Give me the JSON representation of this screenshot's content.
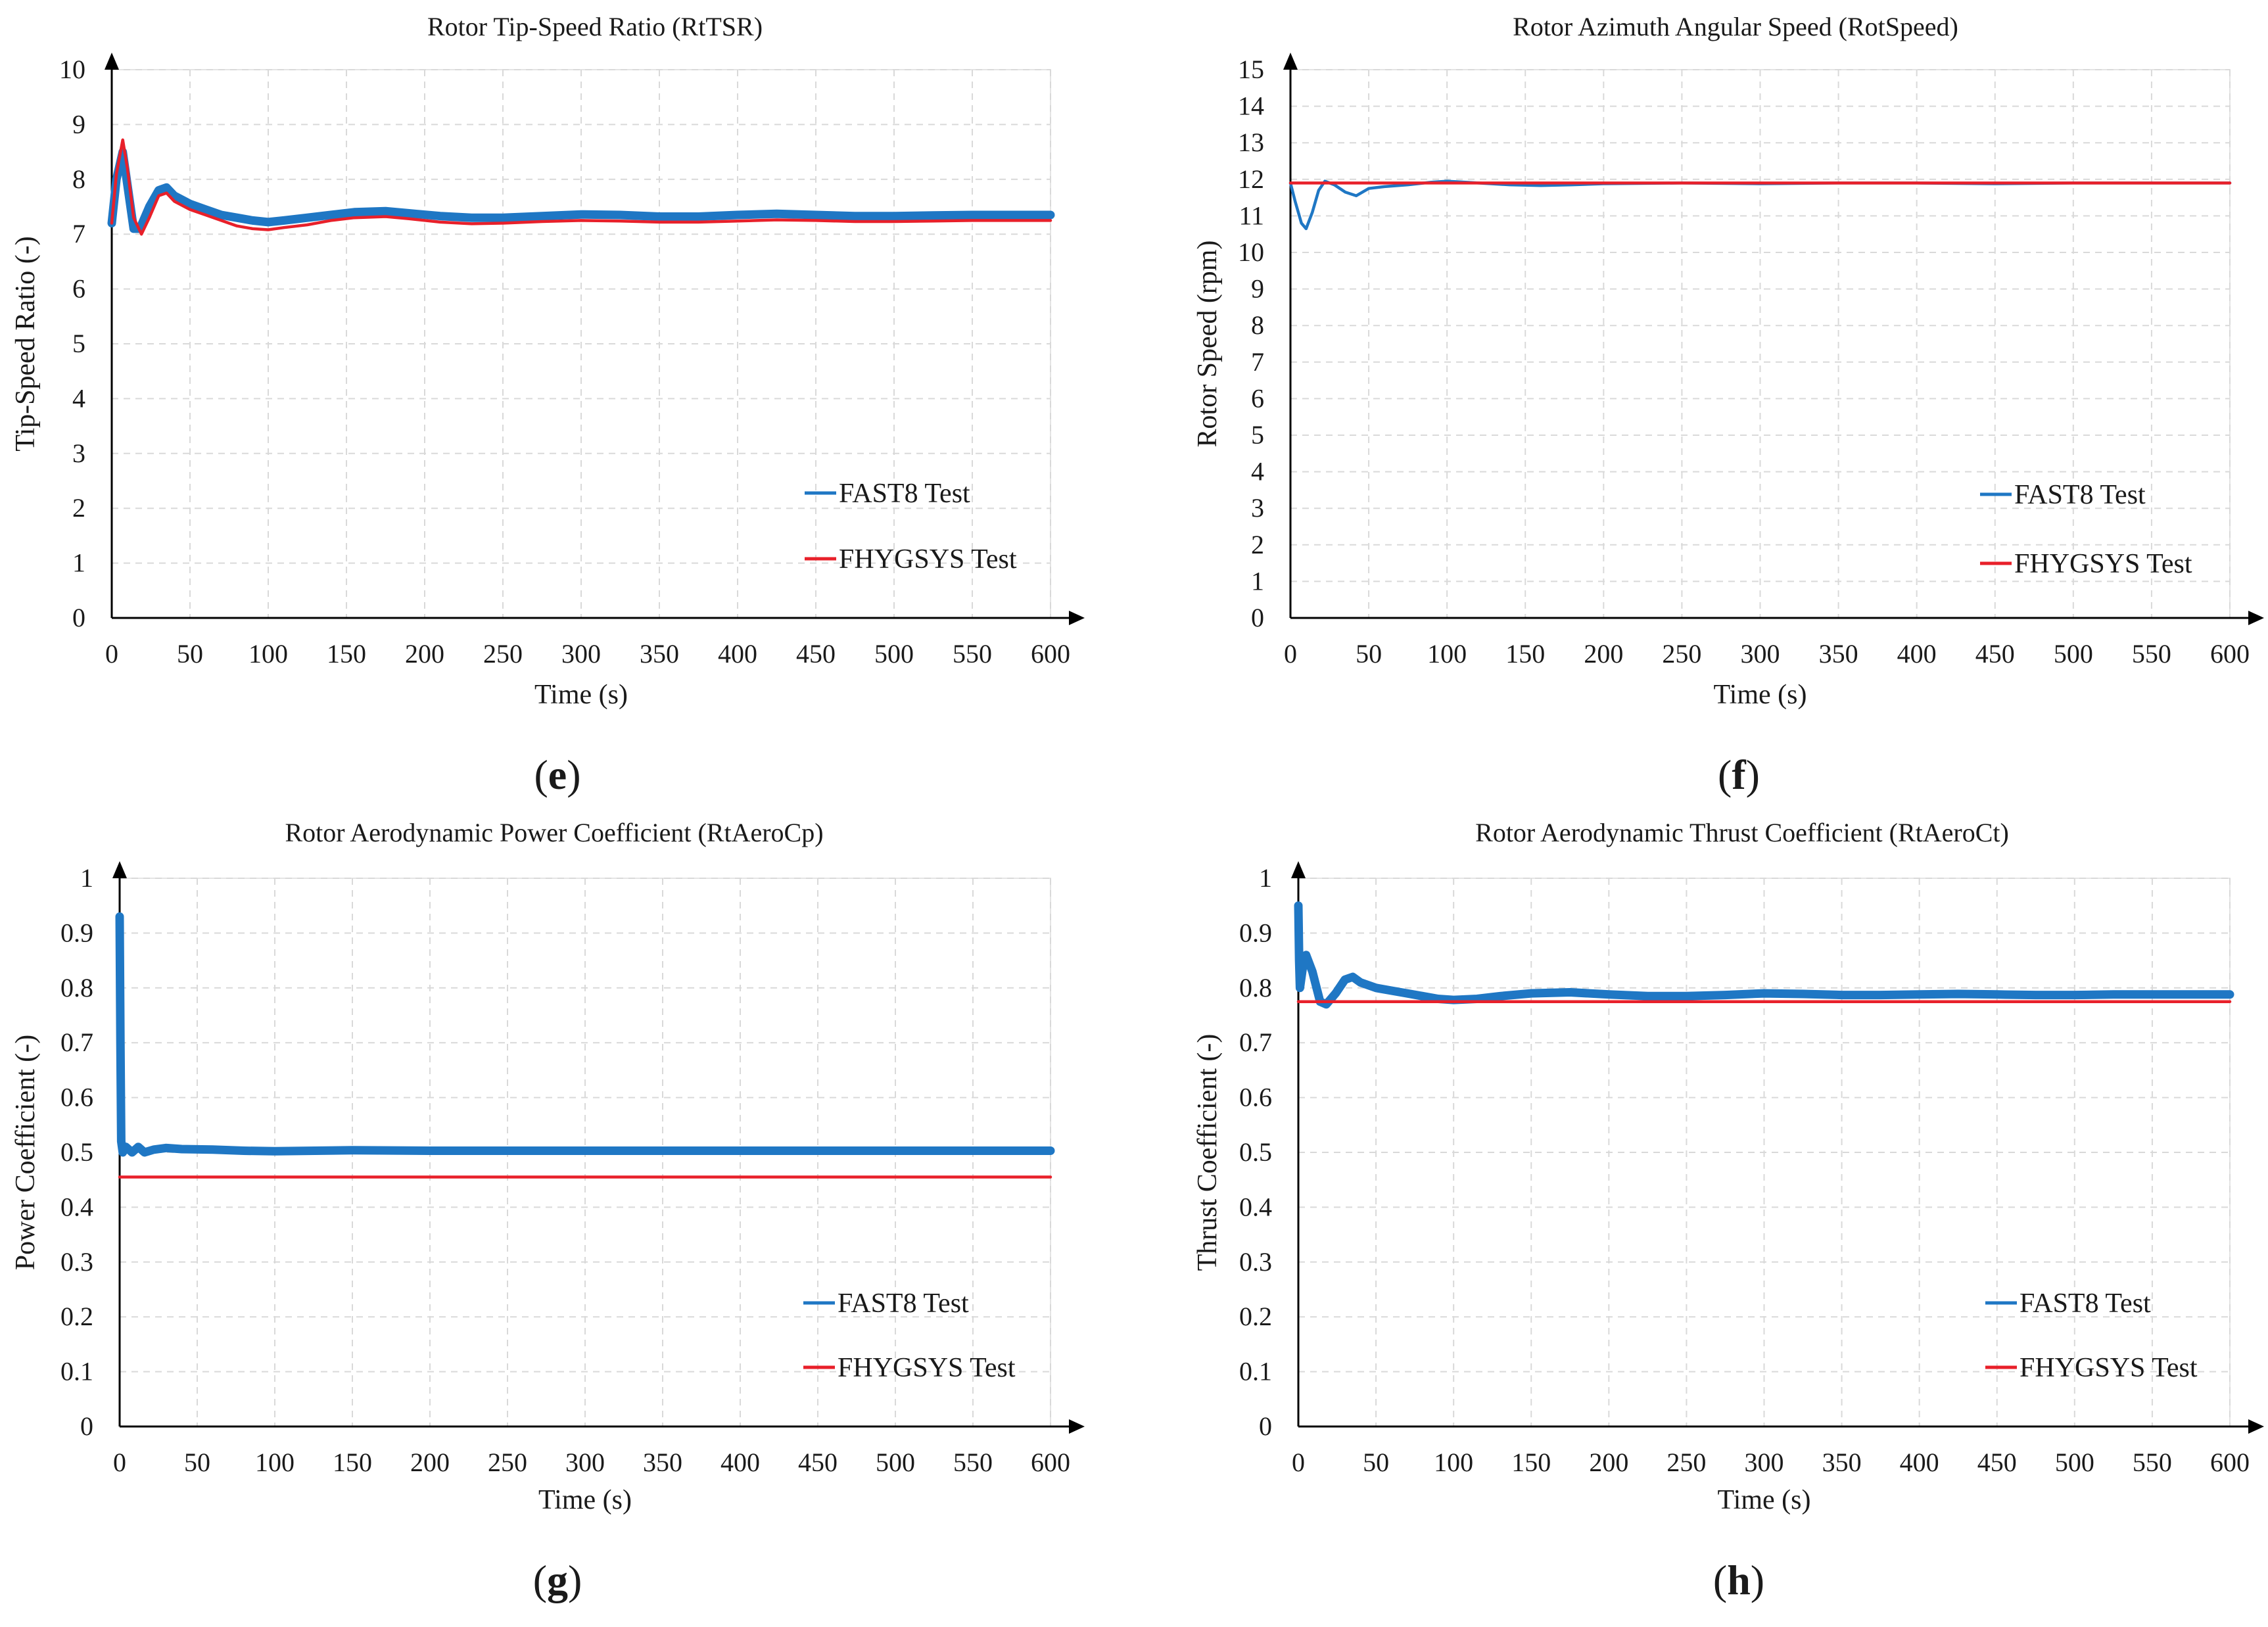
{
  "figure": {
    "background": "#ffffff"
  },
  "colors": {
    "fast8": "#1f77c4",
    "fhygsys": "#e8202a"
  },
  "chart_data": [
    {
      "type": "line",
      "panel": "e",
      "title": "Rotor Tip-Speed Ratio (RtTSR)",
      "xlabel": "Time (s)",
      "ylabel": "Tip-Speed Ratio (-)",
      "xlim": [
        0,
        600
      ],
      "ylim": [
        0,
        10
      ],
      "xticks": [
        0,
        50,
        100,
        150,
        200,
        250,
        300,
        350,
        400,
        450,
        500,
        550,
        600
      ],
      "yticks": [
        0,
        1,
        2,
        3,
        4,
        5,
        6,
        7,
        8,
        9,
        10
      ],
      "ytick_labels": [
        "0",
        "1",
        "2",
        "3",
        "4",
        "5",
        "6",
        "7",
        "8",
        "9",
        "10"
      ],
      "grid": true,
      "legend_position": "lower-right",
      "series": [
        {
          "name": "FAST8 Test",
          "color": "#1f77c4",
          "width": "thick",
          "x": [
            0,
            3,
            7,
            10,
            14,
            18,
            24,
            30,
            35,
            40,
            50,
            60,
            70,
            80,
            90,
            100,
            110,
            125,
            140,
            155,
            175,
            190,
            210,
            230,
            250,
            275,
            300,
            325,
            350,
            375,
            400,
            425,
            450,
            475,
            500,
            525,
            550,
            575,
            600
          ],
          "y": [
            7.2,
            8.0,
            8.5,
            7.9,
            7.1,
            7.1,
            7.5,
            7.8,
            7.85,
            7.7,
            7.55,
            7.45,
            7.35,
            7.3,
            7.25,
            7.22,
            7.25,
            7.3,
            7.35,
            7.4,
            7.42,
            7.38,
            7.33,
            7.3,
            7.3,
            7.33,
            7.36,
            7.35,
            7.32,
            7.32,
            7.35,
            7.37,
            7.35,
            7.33,
            7.33,
            7.34,
            7.35,
            7.35,
            7.35
          ]
        },
        {
          "name": "FHYGSYS Test",
          "color": "#e8202a",
          "width": "thin",
          "x": [
            0,
            3,
            7,
            10,
            14,
            19,
            24,
            30,
            35,
            40,
            50,
            60,
            70,
            80,
            90,
            100,
            110,
            125,
            140,
            155,
            175,
            190,
            210,
            230,
            250,
            275,
            300,
            325,
            350,
            375,
            400,
            425,
            450,
            475,
            500,
            525,
            550,
            575,
            600
          ],
          "y": [
            7.2,
            8.1,
            8.72,
            8.2,
            7.3,
            7.0,
            7.3,
            7.7,
            7.75,
            7.6,
            7.45,
            7.35,
            7.25,
            7.15,
            7.1,
            7.08,
            7.12,
            7.17,
            7.25,
            7.3,
            7.32,
            7.28,
            7.22,
            7.19,
            7.2,
            7.23,
            7.25,
            7.24,
            7.22,
            7.22,
            7.24,
            7.26,
            7.25,
            7.23,
            7.23,
            7.24,
            7.25,
            7.25,
            7.25
          ]
        }
      ]
    },
    {
      "type": "line",
      "panel": "f",
      "title": "Rotor Azimuth Angular Speed (RotSpeed)",
      "xlabel": "Time (s)",
      "ylabel": "Rotor Speed (rpm)",
      "xlim": [
        0,
        600
      ],
      "ylim": [
        0,
        15
      ],
      "xticks": [
        0,
        50,
        100,
        150,
        200,
        250,
        300,
        350,
        400,
        450,
        500,
        550,
        600
      ],
      "yticks": [
        0,
        1,
        2,
        3,
        4,
        5,
        6,
        7,
        8,
        9,
        10,
        11,
        12,
        13,
        14,
        15
      ],
      "ytick_labels": [
        "0",
        "1",
        "2",
        "3",
        "4",
        "5",
        "6",
        "7",
        "8",
        "9",
        "10",
        "11",
        "12",
        "13",
        "14",
        "15"
      ],
      "grid": true,
      "legend_position": "lower-right",
      "series": [
        {
          "name": "FAST8 Test",
          "color": "#1f77c4",
          "width": "thin",
          "x": [
            0,
            3,
            7,
            10,
            14,
            18,
            22,
            28,
            35,
            42,
            50,
            60,
            75,
            90,
            100,
            120,
            140,
            160,
            180,
            200,
            250,
            300,
            350,
            400,
            450,
            500,
            550,
            600
          ],
          "y": [
            11.9,
            11.4,
            10.8,
            10.65,
            11.1,
            11.7,
            11.95,
            11.85,
            11.65,
            11.55,
            11.75,
            11.8,
            11.85,
            11.92,
            11.95,
            11.9,
            11.85,
            11.83,
            11.85,
            11.88,
            11.9,
            11.88,
            11.9,
            11.9,
            11.88,
            11.9,
            11.9,
            11.9
          ]
        },
        {
          "name": "FHYGSYS Test",
          "color": "#e8202a",
          "width": "thin",
          "x": [
            0,
            600
          ],
          "y": [
            11.9,
            11.9
          ]
        }
      ]
    },
    {
      "type": "line",
      "panel": "g",
      "title": "Rotor Aerodynamic Power Coefficient (RtAeroCp)",
      "xlabel": "Time (s)",
      "ylabel": "Power Coefficient (-)",
      "xlim": [
        0,
        600
      ],
      "ylim": [
        0,
        1
      ],
      "xticks": [
        0,
        50,
        100,
        150,
        200,
        250,
        300,
        350,
        400,
        450,
        500,
        550,
        600
      ],
      "yticks": [
        0,
        0.1,
        0.2,
        0.3,
        0.4,
        0.5,
        0.6,
        0.7,
        0.8,
        0.9,
        1
      ],
      "ytick_labels": [
        "0",
        "0.1",
        "0.2",
        "0.3",
        "0.4",
        "0.5",
        "0.6",
        "0.7",
        "0.8",
        "0.9",
        "1"
      ],
      "grid": true,
      "legend_position": "lower-right",
      "series": [
        {
          "name": "FAST8 Test",
          "color": "#1f77c4",
          "width": "thick",
          "x": [
            0,
            0.5,
            1,
            2,
            4,
            8,
            12,
            16,
            22,
            30,
            40,
            60,
            80,
            100,
            150,
            200,
            250,
            300,
            350,
            400,
            450,
            500,
            550,
            600
          ],
          "y": [
            0.93,
            0.7,
            0.52,
            0.5,
            0.51,
            0.5,
            0.51,
            0.5,
            0.505,
            0.508,
            0.506,
            0.505,
            0.503,
            0.502,
            0.504,
            0.503,
            0.503,
            0.503,
            0.503,
            0.503,
            0.503,
            0.503,
            0.503,
            0.503
          ]
        },
        {
          "name": "FHYGSYS Test",
          "color": "#e8202a",
          "width": "thin",
          "x": [
            0,
            600
          ],
          "y": [
            0.455,
            0.455
          ]
        }
      ]
    },
    {
      "type": "line",
      "panel": "h",
      "title": "Rotor Aerodynamic Thrust Coefficient (RtAeroCt)",
      "xlabel": "Time (s)",
      "ylabel": "Thrust Coefficient (-)",
      "xlim": [
        0,
        600
      ],
      "ylim": [
        0,
        1
      ],
      "xticks": [
        0,
        50,
        100,
        150,
        200,
        250,
        300,
        350,
        400,
        450,
        500,
        550,
        600
      ],
      "yticks": [
        0,
        0.1,
        0.2,
        0.3,
        0.4,
        0.5,
        0.6,
        0.7,
        0.8,
        0.9,
        1
      ],
      "ytick_labels": [
        "0",
        "0.1",
        "0.2",
        "0.3",
        "0.4",
        "0.5",
        "0.6",
        "0.7",
        "0.8",
        "0.9",
        "1"
      ],
      "grid": true,
      "legend_position": "lower-right",
      "series": [
        {
          "name": "FAST8 Test",
          "color": "#1f77c4",
          "width": "thick",
          "x": [
            0,
            0.5,
            1,
            3,
            5,
            9,
            14,
            18,
            24,
            30,
            35,
            40,
            50,
            60,
            70,
            80,
            90,
            100,
            115,
            130,
            150,
            175,
            200,
            225,
            250,
            275,
            300,
            325,
            350,
            375,
            400,
            425,
            450,
            475,
            500,
            525,
            550,
            575,
            600
          ],
          "y": [
            0.95,
            0.85,
            0.8,
            0.84,
            0.86,
            0.83,
            0.775,
            0.77,
            0.79,
            0.815,
            0.82,
            0.81,
            0.8,
            0.795,
            0.79,
            0.785,
            0.78,
            0.778,
            0.78,
            0.785,
            0.79,
            0.792,
            0.788,
            0.785,
            0.785,
            0.787,
            0.79,
            0.789,
            0.787,
            0.787,
            0.788,
            0.789,
            0.788,
            0.787,
            0.787,
            0.788,
            0.788,
            0.788,
            0.788
          ]
        },
        {
          "name": "FHYGSYS Test",
          "color": "#e8202a",
          "width": "thin",
          "x": [
            0,
            600
          ],
          "y": [
            0.775,
            0.775
          ]
        }
      ]
    }
  ]
}
